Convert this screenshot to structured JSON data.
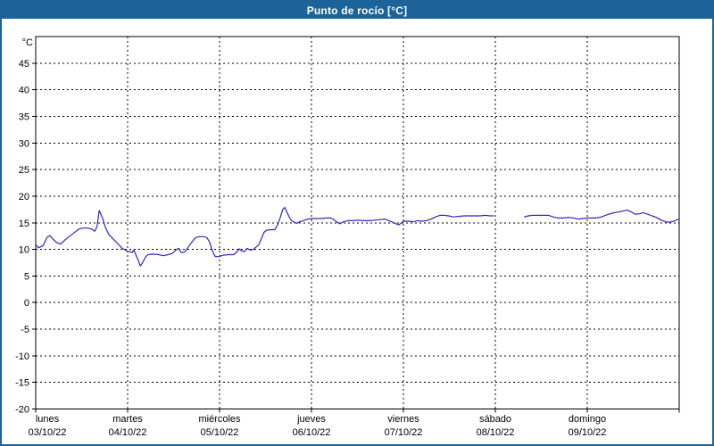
{
  "window": {
    "title": "Punto de rocío [°C]",
    "titlebar_color": "#1b6398",
    "border_color": "#1b6398",
    "background_color": "#ffffff"
  },
  "chart_data": {
    "type": "line",
    "title": "Punto de rocío [°C]",
    "ylabel": "°C",
    "xlabel": "",
    "ylim": [
      -20,
      50
    ],
    "y_ticks": [
      45,
      40,
      35,
      30,
      25,
      20,
      15,
      10,
      5,
      0,
      -5,
      -10,
      -15,
      -20
    ],
    "x_hours_range": [
      0,
      168
    ],
    "x_days": [
      {
        "name": "lunes",
        "date": "03/10/22"
      },
      {
        "name": "martes",
        "date": "04/10/22"
      },
      {
        "name": "miércoles",
        "date": "05/10/22"
      },
      {
        "name": "jueves",
        "date": "06/10/22"
      },
      {
        "name": "viernes",
        "date": "07/10/22"
      },
      {
        "name": "sábado",
        "date": "08/10/22"
      },
      {
        "name": "domingo",
        "date": "09/10/22"
      }
    ],
    "grid": "dotted",
    "legend": "none",
    "line_color": "#2a2ab8",
    "axis_color": "#000000",
    "series": [
      {
        "name": "Punto de rocío",
        "unit": "°C",
        "segments": [
          [
            [
              0,
              10.9
            ],
            [
              0.7,
              10.3
            ],
            [
              1.9,
              10.7
            ],
            [
              3.0,
              12.3
            ],
            [
              3.7,
              12.6
            ],
            [
              4.7,
              11.8
            ],
            [
              5.4,
              11.3
            ],
            [
              6.5,
              11.0
            ],
            [
              7.7,
              11.8
            ],
            [
              8.9,
              12.5
            ],
            [
              9.6,
              12.9
            ],
            [
              10.5,
              13.4
            ],
            [
              11.2,
              13.8
            ],
            [
              12.3,
              14.0
            ],
            [
              13.5,
              14.0
            ],
            [
              14.7,
              13.8
            ],
            [
              15.4,
              13.4
            ],
            [
              16.0,
              14.3
            ],
            [
              16.3,
              15.9
            ],
            [
              16.6,
              17.3
            ],
            [
              17.5,
              15.8
            ],
            [
              18.2,
              14.1
            ],
            [
              19.1,
              12.8
            ],
            [
              20.3,
              11.9
            ],
            [
              21.4,
              11.1
            ],
            [
              22.6,
              10.2
            ],
            [
              23.8,
              9.7
            ],
            [
              25.2,
              9.4
            ],
            [
              25.6,
              9.9
            ],
            [
              26.8,
              7.9
            ],
            [
              27.3,
              6.9
            ],
            [
              27.9,
              7.5
            ],
            [
              28.7,
              8.6
            ],
            [
              29.3,
              9.0
            ],
            [
              30.7,
              9.1
            ],
            [
              32.1,
              9.0
            ],
            [
              33.3,
              8.8
            ],
            [
              34.5,
              9.0
            ],
            [
              35.6,
              9.2
            ],
            [
              36.6,
              9.9
            ],
            [
              37.3,
              10.2
            ],
            [
              38.0,
              9.4
            ],
            [
              38.9,
              9.5
            ],
            [
              39.8,
              10.4
            ],
            [
              40.8,
              11.4
            ],
            [
              41.7,
              12.2
            ],
            [
              42.6,
              12.4
            ],
            [
              43.8,
              12.4
            ],
            [
              44.7,
              12.2
            ],
            [
              45.4,
              11.4
            ],
            [
              46.1,
              9.8
            ],
            [
              46.8,
              8.7
            ],
            [
              47.7,
              8.6
            ],
            [
              48.9,
              8.9
            ],
            [
              50.3,
              9.0
            ],
            [
              51.7,
              9.0
            ],
            [
              52.6,
              9.6
            ],
            [
              53.1,
              10.1
            ],
            [
              53.8,
              9.7
            ],
            [
              54.5,
              9.6
            ],
            [
              55.2,
              10.2
            ],
            [
              55.9,
              9.9
            ],
            [
              56.6,
              9.9
            ],
            [
              57.3,
              10.3
            ],
            [
              58.2,
              10.8
            ],
            [
              58.9,
              12.0
            ],
            [
              59.6,
              13.2
            ],
            [
              60.3,
              13.6
            ],
            [
              61.5,
              13.7
            ],
            [
              62.4,
              13.7
            ],
            [
              63.1,
              14.5
            ],
            [
              63.8,
              15.9
            ],
            [
              64.5,
              17.5
            ],
            [
              65.0,
              17.9
            ],
            [
              65.4,
              17.3
            ],
            [
              66.1,
              16.2
            ],
            [
              66.8,
              15.4
            ],
            [
              67.5,
              15.1
            ],
            [
              68.2,
              14.9
            ],
            [
              68.9,
              15.2
            ],
            [
              69.9,
              15.4
            ],
            [
              71.0,
              15.7
            ],
            [
              72.2,
              15.8
            ],
            [
              73.4,
              15.8
            ],
            [
              74.5,
              15.8
            ],
            [
              75.9,
              15.9
            ],
            [
              77.1,
              15.9
            ],
            [
              78.0,
              15.5
            ],
            [
              78.7,
              15.1
            ],
            [
              79.4,
              14.8
            ],
            [
              80.3,
              15.2
            ],
            [
              81.5,
              15.4
            ],
            [
              82.9,
              15.4
            ],
            [
              84.3,
              15.5
            ],
            [
              85.7,
              15.4
            ],
            [
              87.1,
              15.4
            ],
            [
              88.5,
              15.5
            ],
            [
              89.9,
              15.6
            ],
            [
              91.1,
              15.7
            ],
            [
              92.2,
              15.4
            ],
            [
              93.2,
              15.1
            ],
            [
              94.1,
              14.8
            ],
            [
              94.8,
              14.6
            ],
            [
              95.5,
              15.0
            ],
            [
              96.2,
              15.3
            ],
            [
              97.3,
              15.3
            ],
            [
              98.5,
              15.2
            ],
            [
              99.7,
              15.4
            ],
            [
              100.8,
              15.3
            ],
            [
              102.0,
              15.4
            ],
            [
              103.2,
              15.7
            ],
            [
              104.4,
              16.1
            ],
            [
              105.5,
              16.4
            ],
            [
              106.7,
              16.4
            ],
            [
              107.8,
              16.3
            ],
            [
              109.0,
              16.1
            ],
            [
              110.4,
              16.2
            ],
            [
              111.8,
              16.3
            ],
            [
              113.2,
              16.3
            ],
            [
              114.6,
              16.3
            ],
            [
              116.0,
              16.3
            ],
            [
              117.4,
              16.4
            ],
            [
              118.6,
              16.3
            ],
            [
              119.5,
              16.3
            ]
          ],
          [
            [
              127.6,
              16.1
            ],
            [
              128.6,
              16.3
            ],
            [
              129.7,
              16.4
            ],
            [
              131.1,
              16.4
            ],
            [
              132.5,
              16.4
            ],
            [
              133.9,
              16.4
            ],
            [
              135.1,
              16.1
            ],
            [
              136.3,
              15.9
            ],
            [
              137.7,
              15.9
            ],
            [
              139.1,
              16.0
            ],
            [
              140.4,
              15.9
            ],
            [
              141.6,
              15.7
            ],
            [
              142.8,
              15.8
            ],
            [
              144.0,
              15.9
            ],
            [
              145.1,
              15.9
            ],
            [
              146.3,
              15.9
            ],
            [
              147.7,
              16.1
            ],
            [
              149.1,
              16.5
            ],
            [
              150.5,
              16.8
            ],
            [
              151.9,
              17.0
            ],
            [
              153.3,
              17.2
            ],
            [
              154.4,
              17.4
            ],
            [
              155.6,
              17.0
            ],
            [
              156.5,
              16.6
            ],
            [
              157.7,
              16.7
            ],
            [
              158.6,
              16.9
            ],
            [
              159.8,
              16.6
            ],
            [
              160.9,
              16.3
            ],
            [
              162.1,
              16.0
            ],
            [
              163.3,
              15.5
            ],
            [
              164.4,
              15.2
            ],
            [
              165.6,
              15.1
            ],
            [
              166.5,
              15.3
            ],
            [
              167.2,
              15.5
            ],
            [
              167.9,
              15.7
            ]
          ]
        ]
      }
    ]
  }
}
